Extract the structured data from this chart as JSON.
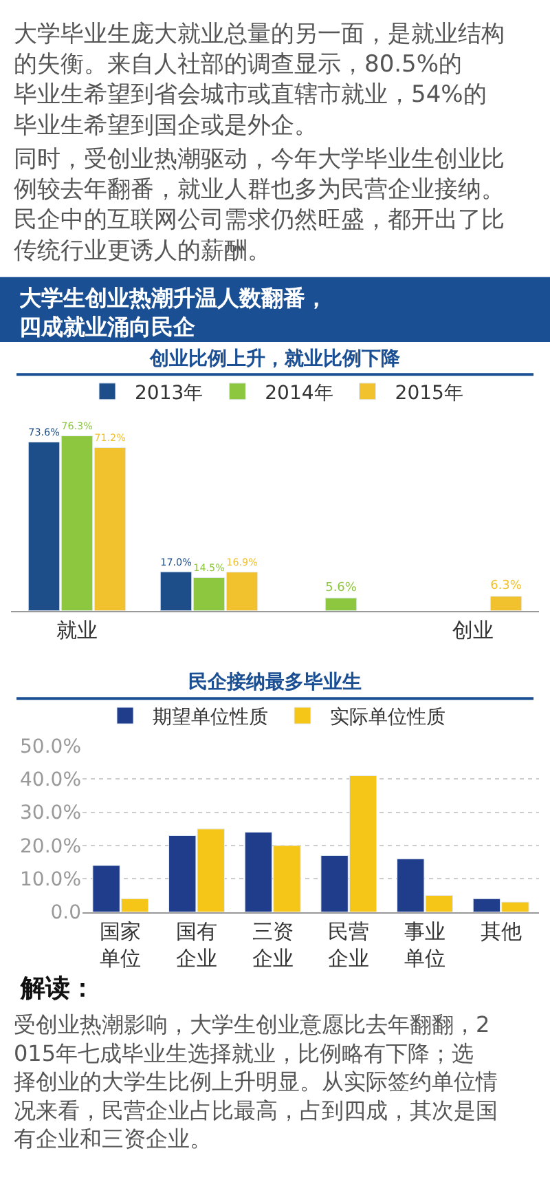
{
  "chart_data": [
    {
      "type": "other",
      "annotations": [
        "大学毕业生庞大就业总量的另一面，是就业结构的失衡。来自人社部的调查显示，80.5%的毕业生希望到省会城市或直辖市就业，54%的毕业生希望到国企或是外企。",
        "同时，受创业热潮驱动，今年大学毕业生创业比例较去年翻番，就业人群也多为民营企业接纳。民企中的互联网公司需求仍然旺盛，都开出了比传统行业更诱人的薪酬。"
      ]
    },
    {
      "type": "bar",
      "title": "大学生创业热潮升温人数翻番，四成就业涌向民企",
      "subtitle": "创业比例上升，就业比例下降",
      "legend": "top",
      "categories": [
        "就业",
        null,
        null,
        "创业"
      ],
      "series": [
        {
          "name": "2013年",
          "color": "#1d4e89",
          "values": [
            73.6,
            17.0,
            null,
            null
          ],
          "value_labels": [
            "73.6%",
            "17.0%",
            null,
            null
          ]
        },
        {
          "name": "2014年",
          "color": "#8dc63f",
          "values": [
            76.3,
            14.5,
            5.6,
            null
          ],
          "value_labels": [
            "76.3%",
            "14.5%",
            "5.6%",
            null
          ]
        },
        {
          "name": "2015年",
          "color": "#f2c12e",
          "values": [
            71.2,
            16.9,
            null,
            6.3
          ],
          "value_labels": [
            "71.2%",
            "16.9%",
            null,
            "6.3%"
          ]
        }
      ]
    },
    {
      "type": "bar",
      "title": "民企接纳最多毕业生",
      "legend": "top",
      "grid": "y",
      "categories": [
        "国家单位",
        "国有企业",
        "三资企业",
        "民营企业",
        "事业单位",
        "其他"
      ],
      "ylim": [
        0,
        50
      ],
      "yticks": [
        {
          "value": 0,
          "label": "0.0"
        },
        {
          "value": 10,
          "label": "10.0%"
        },
        {
          "value": 20,
          "label": "20.0%"
        },
        {
          "value": 30,
          "label": "30.0%"
        },
        {
          "value": 40,
          "label": "40.0%"
        },
        {
          "value": 50,
          "label": "50.0%"
        }
      ],
      "series": [
        {
          "name": "期望单位性质",
          "color": "#1f3d8a",
          "values": [
            14,
            23,
            24,
            17,
            16,
            4
          ]
        },
        {
          "name": "实际单位性质",
          "color": "#f5c518",
          "values": [
            4,
            25,
            20,
            41,
            5,
            3
          ]
        }
      ]
    },
    {
      "type": "other",
      "title": "解读：",
      "annotations": [
        "受创业热潮影响，大学生创业意愿比去年翻翻，2015年七成毕业生选择就业，比例略有下降；选择创业的大学生比例上升明显。从实际签约单位情况来看，民营企业占比最高，占到四成，其次是国有企业和三资企业。"
      ]
    }
  ]
}
